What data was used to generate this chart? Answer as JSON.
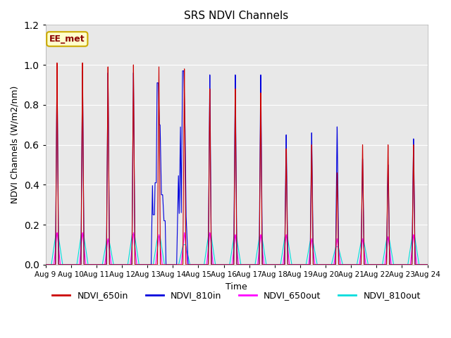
{
  "title": "SRS NDVI Channels",
  "xlabel": "Time",
  "ylabel": "NDVI Channels (W/m2/nm)",
  "ylim": [
    0.0,
    1.2
  ],
  "yticks": [
    0.0,
    0.2,
    0.4,
    0.6,
    0.8,
    1.0,
    1.2
  ],
  "xtick_labels": [
    "Aug 9",
    "Aug 10",
    "Aug 11",
    "Aug 12",
    "Aug 13",
    "Aug 14",
    "Aug 15",
    "Aug 16",
    "Aug 17",
    "Aug 18",
    "Aug 19",
    "Aug 20",
    "Aug 21",
    "Aug 22",
    "Aug 23",
    "Aug 24"
  ],
  "color_650in": "#cc0000",
  "color_810in": "#0000dd",
  "color_650out": "#ff00ff",
  "color_810out": "#00dddd",
  "annotation_text": "EE_met",
  "background_color": "#e8e8e8",
  "peak_650in": [
    1.01,
    1.01,
    0.99,
    1.0,
    0.99,
    0.98,
    0.88,
    0.88,
    0.86,
    0.58,
    0.6,
    0.46,
    0.6,
    0.6,
    0.6
  ],
  "peak_810in": [
    0.97,
    0.97,
    0.96,
    0.96,
    0.95,
    0.97,
    0.95,
    0.95,
    0.95,
    0.65,
    0.66,
    0.69,
    0.53,
    0.5,
    0.63
  ],
  "peak_650out": [
    0.16,
    0.16,
    0.13,
    0.16,
    0.15,
    0.16,
    0.16,
    0.15,
    0.15,
    0.15,
    0.13,
    0.13,
    0.13,
    0.14,
    0.15
  ],
  "peak_810out": [
    0.15,
    0.15,
    0.12,
    0.15,
    0.14,
    0.1,
    0.15,
    0.14,
    0.14,
    0.14,
    0.12,
    0.09,
    0.12,
    0.13,
    0.14
  ],
  "legend_labels": [
    "NDVI_650in",
    "NDVI_810in",
    "NDVI_650out",
    "NDVI_810out"
  ],
  "figsize": [
    6.4,
    4.8
  ],
  "dpi": 100
}
